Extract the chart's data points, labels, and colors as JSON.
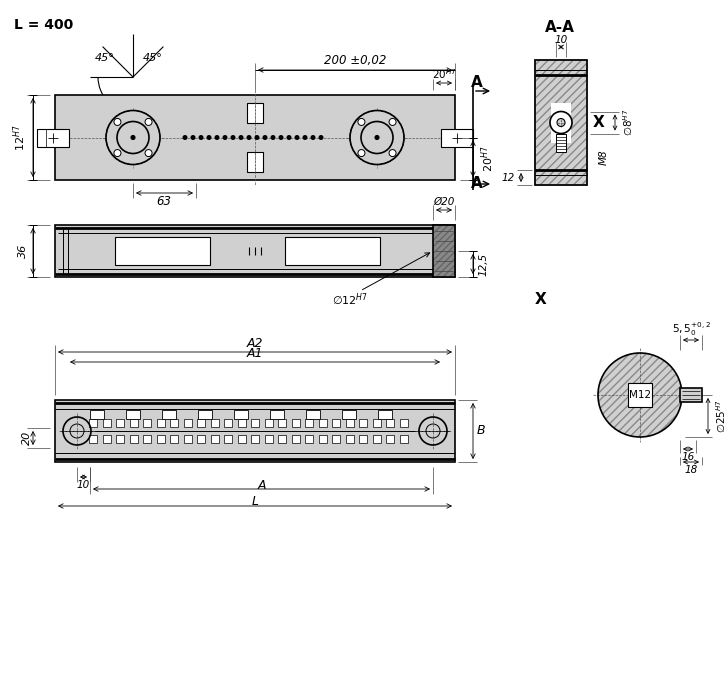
{
  "bg_color": "#ffffff",
  "line_color": "#000000",
  "fill_color": "#d0d0d0",
  "dark_fill": "#888888",
  "fill_light": "#e8e8e8",
  "label_L": "L = 400",
  "dim_200": "200 ±0,02",
  "dim_20H7_top": "20$^{H7}$",
  "dim_12H7_left": "12$^{H7}$",
  "dim_20H7_right": "20$^{H7}$",
  "dim_63": "63",
  "dim_45_left": "45°",
  "dim_45_right": "45°",
  "label_A_top": "A",
  "label_A_bot": "A",
  "label_AA": "A-A",
  "dim_10_aa": "10",
  "dim_8H7": "×8$^{H7}$",
  "dim_M8": "M8",
  "dim_12_aa": "12",
  "dim_36": "36",
  "dim_20_side": "Ø20",
  "dim_12H7_side": "×12$^{H7}$",
  "dim_12_5": "12,5",
  "label_X_det": "X",
  "dim_55": "5,5$^{+0,2}_{0}$",
  "dim_M12": "M12",
  "dim_25H7": "×25$^{H7}$",
  "dim_16": "16",
  "dim_18": "18",
  "label_A1": "A1",
  "label_A2": "A2",
  "label_B": "B",
  "label_A": "A",
  "label_L_bot": "L",
  "dim_20_front": "20",
  "dim_10_front": "10"
}
